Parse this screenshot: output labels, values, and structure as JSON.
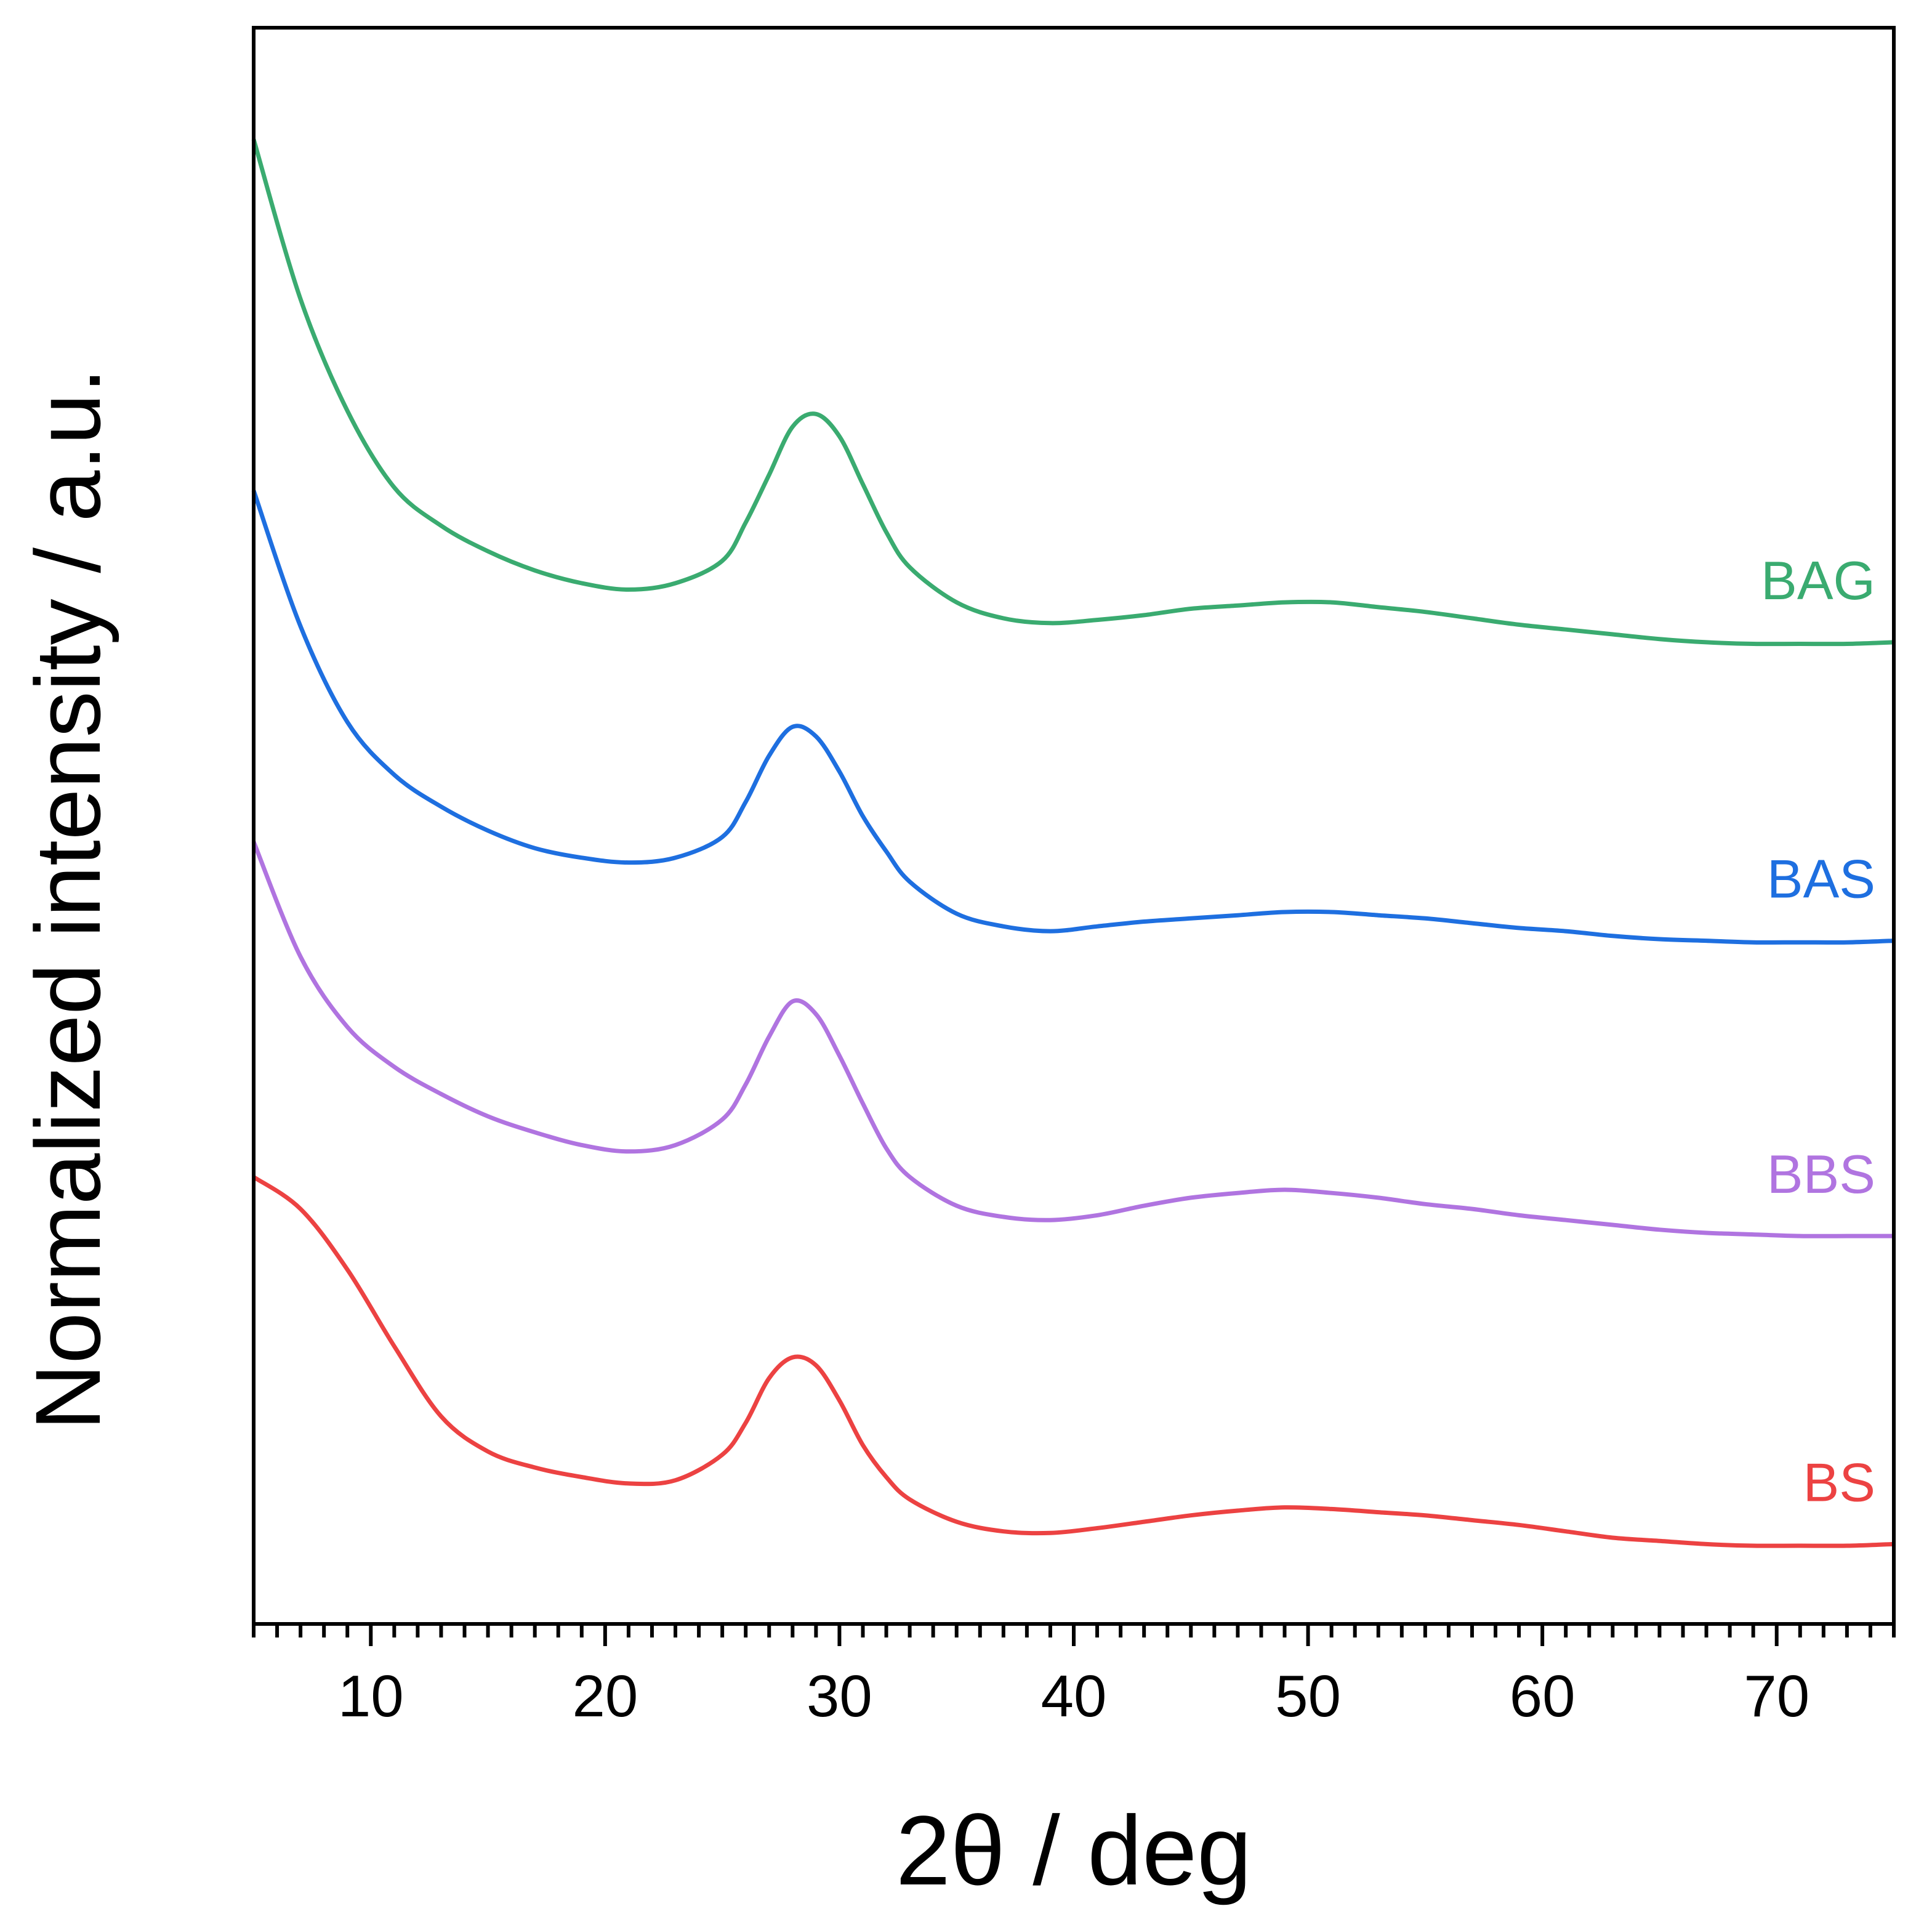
{
  "chart_data": {
    "type": "line",
    "xlabel": "2θ / deg",
    "ylabel": "Normalized intensity / a.u.",
    "xlim": [
      5,
      75
    ],
    "ylim": [
      0,
      10
    ],
    "x_ticks": [
      10,
      20,
      30,
      40,
      50,
      60,
      70
    ],
    "x_tick_labels": [
      "10",
      "20",
      "30",
      "40",
      "50",
      "60",
      "70"
    ],
    "minor_tick_step": 1,
    "y_ticks": [],
    "grid": false,
    "stacked_offset_display": true,
    "series": [
      {
        "name": "BAG",
        "label": "BAG",
        "color": "#3aab70",
        "x": [
          5,
          7,
          9,
          11,
          13,
          15,
          17,
          19,
          21,
          23,
          25,
          26,
          27,
          28,
          29,
          30,
          31,
          32,
          33,
          35,
          37,
          39,
          41,
          43,
          45,
          47,
          49,
          51,
          53,
          55,
          57,
          59,
          61,
          63,
          65,
          67,
          69,
          71,
          73,
          75
        ],
        "y": [
          9.3,
          8.3,
          7.6,
          7.12,
          6.88,
          6.72,
          6.6,
          6.52,
          6.48,
          6.52,
          6.66,
          6.9,
          7.2,
          7.5,
          7.58,
          7.44,
          7.14,
          6.84,
          6.62,
          6.4,
          6.3,
          6.27,
          6.29,
          6.32,
          6.36,
          6.38,
          6.4,
          6.4,
          6.37,
          6.34,
          6.3,
          6.26,
          6.23,
          6.2,
          6.17,
          6.15,
          6.14,
          6.14,
          6.14,
          6.15
        ]
      },
      {
        "name": "BAS",
        "label": "BAS",
        "color": "#1e6fe0",
        "x": [
          5,
          7,
          9,
          11,
          13,
          15,
          17,
          19,
          21,
          23,
          25,
          26,
          27,
          28,
          29,
          30,
          31,
          32,
          33,
          35,
          37,
          39,
          41,
          43,
          45,
          47,
          49,
          51,
          53,
          55,
          57,
          59,
          61,
          63,
          65,
          67,
          69,
          71,
          73,
          75
        ],
        "y": [
          7.1,
          6.25,
          5.65,
          5.32,
          5.12,
          4.97,
          4.86,
          4.8,
          4.77,
          4.8,
          4.93,
          5.15,
          5.44,
          5.62,
          5.56,
          5.34,
          5.06,
          4.84,
          4.65,
          4.45,
          4.37,
          4.34,
          4.37,
          4.4,
          4.42,
          4.44,
          4.46,
          4.46,
          4.44,
          4.42,
          4.39,
          4.36,
          4.34,
          4.31,
          4.29,
          4.28,
          4.27,
          4.27,
          4.27,
          4.28
        ]
      },
      {
        "name": "BBS",
        "label": "BBS",
        "color": "#b074e0",
        "x": [
          5,
          7,
          9,
          11,
          13,
          15,
          17,
          19,
          21,
          23,
          25,
          26,
          27,
          28,
          29,
          30,
          31,
          32,
          33,
          35,
          37,
          39,
          41,
          43,
          45,
          47,
          49,
          51,
          53,
          55,
          57,
          59,
          61,
          63,
          65,
          67,
          69,
          71,
          73,
          75
        ],
        "y": [
          4.9,
          4.18,
          3.74,
          3.49,
          3.32,
          3.18,
          3.08,
          3.0,
          2.96,
          3.0,
          3.16,
          3.38,
          3.68,
          3.9,
          3.82,
          3.56,
          3.26,
          2.98,
          2.8,
          2.62,
          2.55,
          2.53,
          2.56,
          2.62,
          2.67,
          2.7,
          2.72,
          2.7,
          2.67,
          2.63,
          2.6,
          2.56,
          2.53,
          2.5,
          2.47,
          2.45,
          2.44,
          2.43,
          2.43,
          2.43
        ]
      },
      {
        "name": "BS",
        "label": "BS",
        "color": "#ec4242",
        "x": [
          5,
          7,
          9,
          11,
          13,
          15,
          17,
          19,
          21,
          23,
          25,
          26,
          27,
          28,
          29,
          30,
          31,
          32,
          33,
          35,
          37,
          39,
          41,
          43,
          45,
          47,
          49,
          51,
          53,
          55,
          57,
          59,
          61,
          63,
          65,
          67,
          69,
          71,
          73,
          75
        ],
        "y": [
          2.8,
          2.6,
          2.22,
          1.74,
          1.3,
          1.08,
          0.98,
          0.92,
          0.88,
          0.9,
          1.06,
          1.26,
          1.54,
          1.67,
          1.62,
          1.4,
          1.12,
          0.92,
          0.78,
          0.64,
          0.58,
          0.57,
          0.6,
          0.64,
          0.68,
          0.71,
          0.73,
          0.72,
          0.7,
          0.68,
          0.65,
          0.62,
          0.58,
          0.54,
          0.52,
          0.5,
          0.49,
          0.49,
          0.49,
          0.5
        ]
      }
    ]
  }
}
